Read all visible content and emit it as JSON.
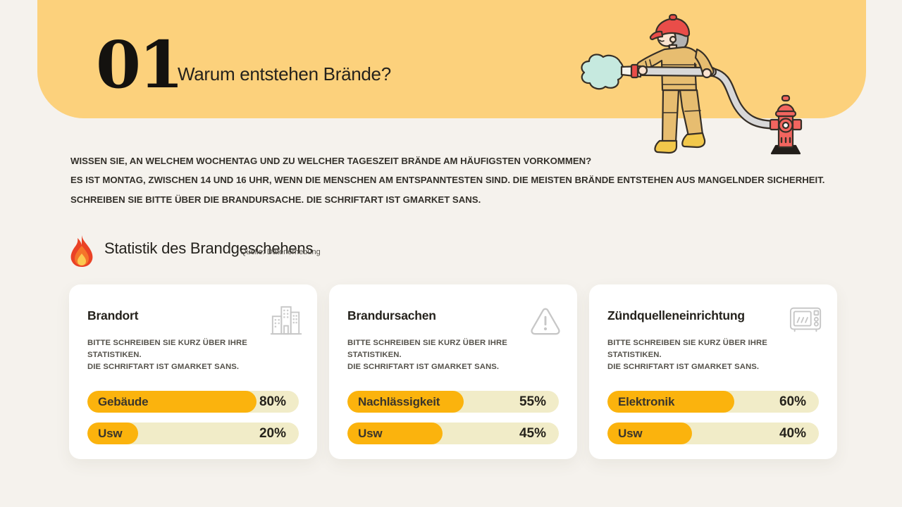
{
  "slide": {
    "section_number": "01",
    "title": "Warum entstehen Brände?",
    "intro_lines": [
      "WISSEN SIE, AN WELCHEM WOCHENTAG UND ZU WELCHER TAGESZEIT BRÄNDE AM HÄUFIGSTEN VORKOMMEN?",
      "ES IST MONTAG, ZWISCHEN 14 UND 16 UHR, WENN DIE MENSCHEN AM ENTSPANNTESTEN SIND. DIE MEISTEN BRÄNDE ENTSTEHEN AUS MANGELNDER SICHERHEIT.",
      "SCHREIBEN SIE BITTE ÜBER DIE BRANDURSACHE. DIE SCHRIFTART IST GMARKET SANS."
    ],
    "stats_heading": "Statistik des Brandgeschehens",
    "stats_source": "Quelle: Datenerhebung"
  },
  "illustration": {
    "name": "firefighter-spraying-hose-connected-to-hydrant"
  },
  "cards": [
    {
      "title": "Brandort",
      "icon": "building-icon",
      "desc": [
        "BITTE SCHREIBEN SIE KURZ ÜBER IHRE STATISTIKEN.",
        "DIE SCHRIFTART IST GMARKET SANS."
      ],
      "bars": [
        {
          "label": "Gebäude",
          "value": 80,
          "display": "80%"
        },
        {
          "label": "Usw",
          "value": 20,
          "display": "20%"
        }
      ]
    },
    {
      "title": "Brandursachen",
      "icon": "warning-triangle-icon",
      "desc": [
        "BITTE SCHREIBEN SIE KURZ ÜBER IHRE STATISTIKEN.",
        "DIE SCHRIFTART IST GMARKET SANS."
      ],
      "bars": [
        {
          "label": "Nachlässigkeit",
          "value": 55,
          "display": "55%"
        },
        {
          "label": "Usw",
          "value": 45,
          "display": "45%"
        }
      ]
    },
    {
      "title": "Zündquelleneinrichtung",
      "icon": "microwave-icon",
      "desc": [
        "BITTE SCHREIBEN SIE KURZ ÜBER IHRE STATISTIKEN.",
        "DIE SCHRIFTART IST GMARKET SANS."
      ],
      "bars": [
        {
          "label": "Elektronik",
          "value": 60,
          "display": "60%"
        },
        {
          "label": "Usw",
          "value": 40,
          "display": "40%"
        }
      ]
    }
  ],
  "colors": {
    "band": "#FCD17C",
    "page_bg": "#F5F2ED",
    "card_bg": "#FFFFFF",
    "bar_track": "#F1ECC8",
    "bar_fill": "#FBB30D",
    "text_dark": "#25221C",
    "text_muted": "#55524B",
    "icon_gray": "#C7C7C7",
    "flame_red": "#EA4226",
    "flame_yellow": "#FBC850",
    "helmet_red": "#E94D49",
    "uniform_tan": "#E7BD70",
    "hydrant_red": "#F2655F",
    "water_teal": "#C6E9DF"
  },
  "chart_data": [
    {
      "type": "bar",
      "title": "Brandort",
      "categories": [
        "Gebäude",
        "Usw"
      ],
      "values": [
        80,
        20
      ],
      "unit": "%",
      "xlim": [
        0,
        100
      ]
    },
    {
      "type": "bar",
      "title": "Brandursachen",
      "categories": [
        "Nachlässigkeit",
        "Usw"
      ],
      "values": [
        55,
        45
      ],
      "unit": "%",
      "xlim": [
        0,
        100
      ]
    },
    {
      "type": "bar",
      "title": "Zündquelleneinrichtung",
      "categories": [
        "Elektronik",
        "Usw"
      ],
      "values": [
        60,
        40
      ],
      "unit": "%",
      "xlim": [
        0,
        100
      ]
    }
  ]
}
